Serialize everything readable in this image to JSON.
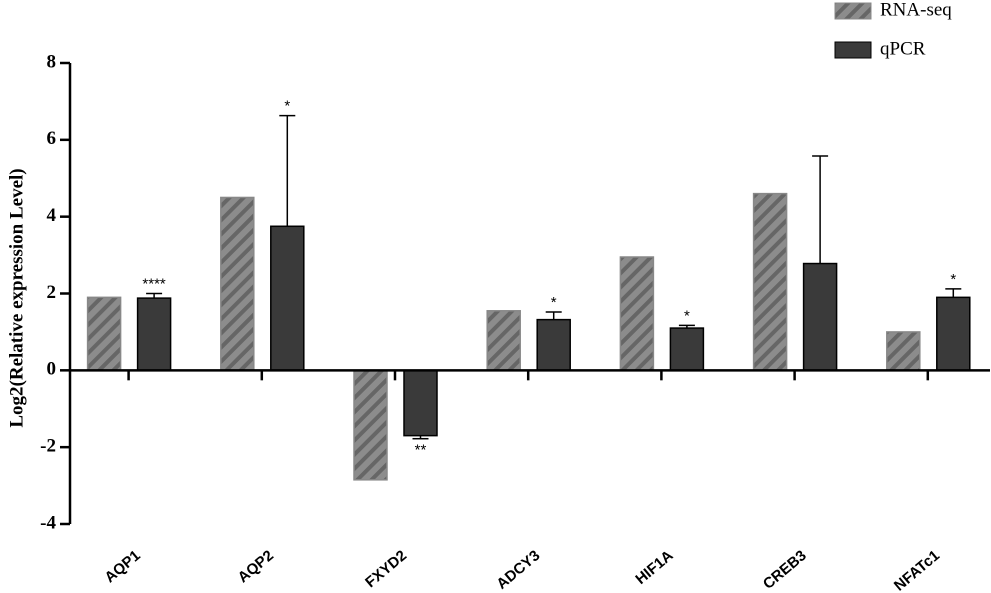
{
  "chart_data": {
    "type": "bar",
    "y_label": "Log2(Relative expression Level)",
    "categories": [
      "AQP1",
      "AQP2",
      "FXYD2",
      "ADCY3",
      "HIF1A",
      "CREB3",
      "NFATc1"
    ],
    "series": [
      {
        "name": "RNA-seq",
        "color": "#8c8c8c",
        "hatch": true,
        "values": [
          1.9,
          4.5,
          -2.85,
          1.55,
          2.95,
          4.6,
          1.0
        ]
      },
      {
        "name": "qPCR",
        "color": "#3a3a3a",
        "hatch": false,
        "values": [
          1.88,
          3.75,
          -1.7,
          1.32,
          1.1,
          2.78,
          1.9
        ],
        "errors": [
          0.12,
          2.88,
          0.08,
          0.2,
          0.07,
          2.8,
          0.22
        ],
        "significance": [
          "****",
          "*",
          "**",
          "*",
          "*",
          null,
          "*"
        ]
      }
    ],
    "ylim": [
      -4,
      8
    ],
    "yticks": [
      -4,
      -2,
      0,
      2,
      4,
      6,
      8
    ],
    "legend": "top-right"
  }
}
